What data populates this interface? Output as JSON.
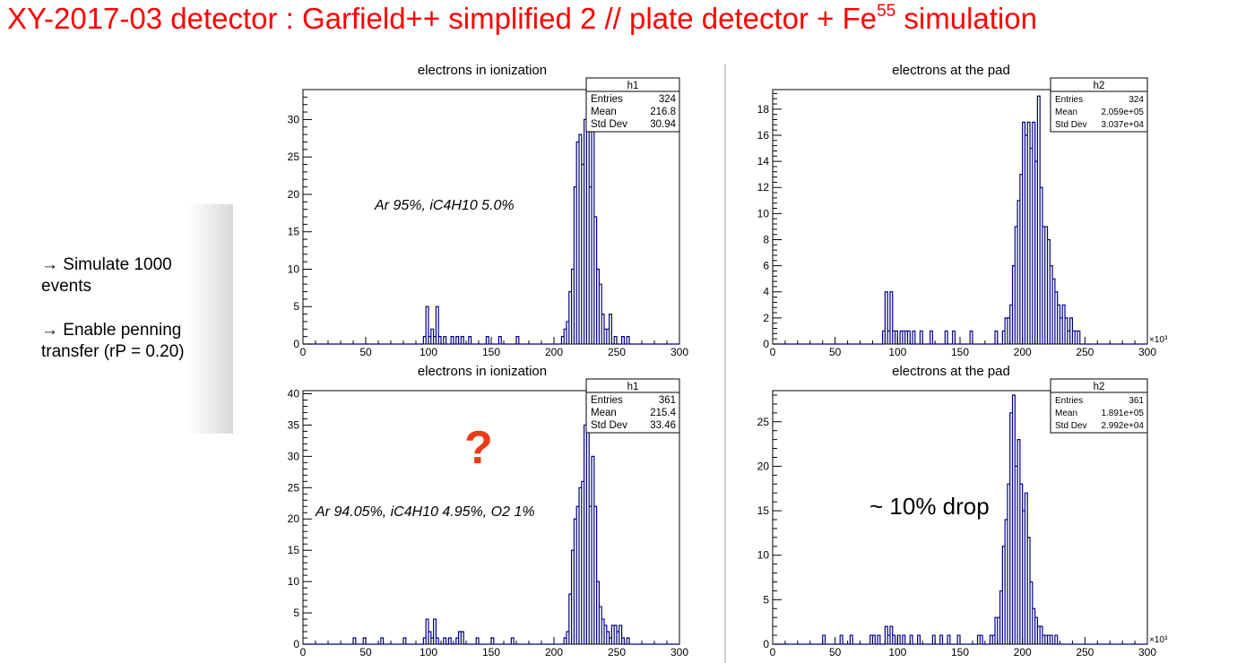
{
  "slide": {
    "title_prefix": "XY-2017-03 detector : Garfield++ simplified 2 // plate detector + Fe",
    "title_sup": "55",
    "title_suffix": " simulation",
    "notes": [
      "→ Simulate 1000 events",
      "→ Enable penning transfer (rP = 0.20)"
    ],
    "question_mark": "?",
    "annotation": "~ 10% drop"
  },
  "chart_data": [
    {
      "type": "bar",
      "title": "electrons in ionization",
      "xlim": [
        0,
        300
      ],
      "ylim": [
        0,
        34
      ],
      "xticks": [
        0,
        50,
        100,
        150,
        200,
        250,
        300
      ],
      "yticks": [
        0,
        5,
        10,
        15,
        20,
        25,
        30
      ],
      "x_multiplier": "",
      "gas_label": "Ar 95%, iC4H10 5.0%",
      "stats": {
        "name": "h1",
        "entries": "324",
        "mean": "216.8",
        "std_dev": "30.94"
      },
      "color": "#00008b",
      "bin_width": 2,
      "bins": [
        [
          96,
          1
        ],
        [
          98,
          5
        ],
        [
          100,
          1
        ],
        [
          102,
          2
        ],
        [
          104,
          1
        ],
        [
          106,
          5
        ],
        [
          108,
          1
        ],
        [
          112,
          1
        ],
        [
          118,
          1
        ],
        [
          122,
          1
        ],
        [
          126,
          1
        ],
        [
          132,
          1
        ],
        [
          146,
          1
        ],
        [
          156,
          1
        ],
        [
          170,
          1
        ],
        [
          206,
          1
        ],
        [
          208,
          2
        ],
        [
          210,
          3
        ],
        [
          212,
          7
        ],
        [
          214,
          10
        ],
        [
          216,
          21
        ],
        [
          218,
          27
        ],
        [
          220,
          28
        ],
        [
          222,
          24
        ],
        [
          224,
          30
        ],
        [
          226,
          33
        ],
        [
          228,
          21
        ],
        [
          230,
          29
        ],
        [
          232,
          17
        ],
        [
          234,
          10
        ],
        [
          236,
          8
        ],
        [
          238,
          4
        ],
        [
          240,
          2
        ],
        [
          242,
          2
        ],
        [
          244,
          4
        ],
        [
          248,
          1
        ],
        [
          254,
          1
        ],
        [
          258,
          1
        ]
      ]
    },
    {
      "type": "bar",
      "title": "electrons at the pad",
      "xlim": [
        0,
        300
      ],
      "ylim": [
        0,
        19.5
      ],
      "xticks": [
        0,
        50,
        100,
        150,
        200,
        250,
        300
      ],
      "yticks": [
        0,
        2,
        4,
        6,
        8,
        10,
        12,
        14,
        16,
        18
      ],
      "x_multiplier": "×10³",
      "stats": {
        "name": "h2",
        "entries": "324",
        "mean": "2.059e+05",
        "std_dev": "3.037e+04"
      },
      "color": "#00008b",
      "bin_width": 2,
      "bins": [
        [
          88,
          1
        ],
        [
          90,
          4
        ],
        [
          92,
          1
        ],
        [
          94,
          4
        ],
        [
          96,
          1
        ],
        [
          98,
          1
        ],
        [
          102,
          1
        ],
        [
          104,
          1
        ],
        [
          106,
          1
        ],
        [
          108,
          1
        ],
        [
          112,
          1
        ],
        [
          118,
          1
        ],
        [
          126,
          1
        ],
        [
          138,
          1
        ],
        [
          144,
          1
        ],
        [
          158,
          1
        ],
        [
          178,
          1
        ],
        [
          184,
          1
        ],
        [
          186,
          2
        ],
        [
          188,
          2
        ],
        [
          190,
          3
        ],
        [
          192,
          6
        ],
        [
          194,
          9
        ],
        [
          196,
          11
        ],
        [
          198,
          13
        ],
        [
          200,
          17
        ],
        [
          202,
          16
        ],
        [
          204,
          17
        ],
        [
          206,
          15
        ],
        [
          208,
          17
        ],
        [
          210,
          14
        ],
        [
          212,
          19
        ],
        [
          214,
          12
        ],
        [
          216,
          9
        ],
        [
          218,
          9
        ],
        [
          220,
          8
        ],
        [
          222,
          6
        ],
        [
          224,
          5
        ],
        [
          226,
          4
        ],
        [
          228,
          3
        ],
        [
          230,
          2
        ],
        [
          232,
          3
        ],
        [
          234,
          2
        ],
        [
          236,
          1
        ],
        [
          238,
          2
        ],
        [
          240,
          1
        ],
        [
          242,
          1
        ],
        [
          244,
          1
        ]
      ]
    },
    {
      "type": "bar",
      "title": "electrons in ionization",
      "xlim": [
        0,
        300
      ],
      "ylim": [
        0,
        40.5
      ],
      "xticks": [
        0,
        50,
        100,
        150,
        200,
        250,
        300
      ],
      "yticks": [
        0,
        5,
        10,
        15,
        20,
        25,
        30,
        35,
        40
      ],
      "x_multiplier": "",
      "gas_label": "Ar 94.05%, iC4H10 4.95%, O2 1%",
      "stats": {
        "name": "h1",
        "entries": "361",
        "mean": "215.4",
        "std_dev": "33.46"
      },
      "color": "#00008b",
      "bin_width": 2,
      "bins": [
        [
          40,
          1
        ],
        [
          48,
          1
        ],
        [
          62,
          1
        ],
        [
          80,
          1
        ],
        [
          96,
          1
        ],
        [
          98,
          4
        ],
        [
          100,
          2
        ],
        [
          102,
          1
        ],
        [
          104,
          4
        ],
        [
          106,
          1
        ],
        [
          112,
          1
        ],
        [
          116,
          1
        ],
        [
          122,
          1
        ],
        [
          124,
          2
        ],
        [
          126,
          2
        ],
        [
          138,
          1
        ],
        [
          150,
          1
        ],
        [
          166,
          1
        ],
        [
          208,
          1
        ],
        [
          210,
          2
        ],
        [
          212,
          8
        ],
        [
          214,
          15
        ],
        [
          216,
          20
        ],
        [
          218,
          22
        ],
        [
          220,
          25
        ],
        [
          222,
          26
        ],
        [
          224,
          35
        ],
        [
          226,
          38
        ],
        [
          228,
          22
        ],
        [
          230,
          30
        ],
        [
          232,
          22
        ],
        [
          234,
          10
        ],
        [
          236,
          6
        ],
        [
          238,
          4
        ],
        [
          240,
          3
        ],
        [
          242,
          2
        ],
        [
          244,
          1
        ],
        [
          246,
          3
        ],
        [
          248,
          3
        ],
        [
          250,
          2
        ],
        [
          252,
          3
        ],
        [
          254,
          1
        ],
        [
          258,
          1
        ]
      ]
    },
    {
      "type": "bar",
      "title": "electrons at the pad",
      "xlim": [
        0,
        300
      ],
      "ylim": [
        0,
        28.5
      ],
      "xticks": [
        0,
        50,
        100,
        150,
        200,
        250,
        300
      ],
      "yticks": [
        0,
        5,
        10,
        15,
        20,
        25
      ],
      "x_multiplier": "×10³",
      "stats": {
        "name": "h2",
        "entries": "361",
        "mean": "1.891e+05",
        "std_dev": "2.992e+04"
      },
      "color": "#00008b",
      "bin_width": 2,
      "bins": [
        [
          40,
          1
        ],
        [
          54,
          1
        ],
        [
          62,
          1
        ],
        [
          78,
          1
        ],
        [
          80,
          1
        ],
        [
          84,
          1
        ],
        [
          90,
          2
        ],
        [
          92,
          1
        ],
        [
          94,
          2
        ],
        [
          96,
          1
        ],
        [
          100,
          1
        ],
        [
          104,
          1
        ],
        [
          110,
          1
        ],
        [
          116,
          1
        ],
        [
          128,
          1
        ],
        [
          134,
          1
        ],
        [
          140,
          1
        ],
        [
          148,
          1
        ],
        [
          164,
          1
        ],
        [
          166,
          1
        ],
        [
          174,
          1
        ],
        [
          176,
          1
        ],
        [
          178,
          3
        ],
        [
          180,
          3
        ],
        [
          182,
          6
        ],
        [
          184,
          11
        ],
        [
          186,
          14
        ],
        [
          188,
          18
        ],
        [
          190,
          26
        ],
        [
          192,
          28
        ],
        [
          194,
          20
        ],
        [
          196,
          23
        ],
        [
          198,
          18
        ],
        [
          200,
          15
        ],
        [
          202,
          17
        ],
        [
          204,
          12
        ],
        [
          206,
          7
        ],
        [
          208,
          4
        ],
        [
          210,
          3
        ],
        [
          212,
          2
        ],
        [
          214,
          2
        ],
        [
          216,
          1
        ],
        [
          218,
          1
        ],
        [
          220,
          1
        ],
        [
          222,
          1
        ],
        [
          226,
          1
        ]
      ]
    }
  ]
}
